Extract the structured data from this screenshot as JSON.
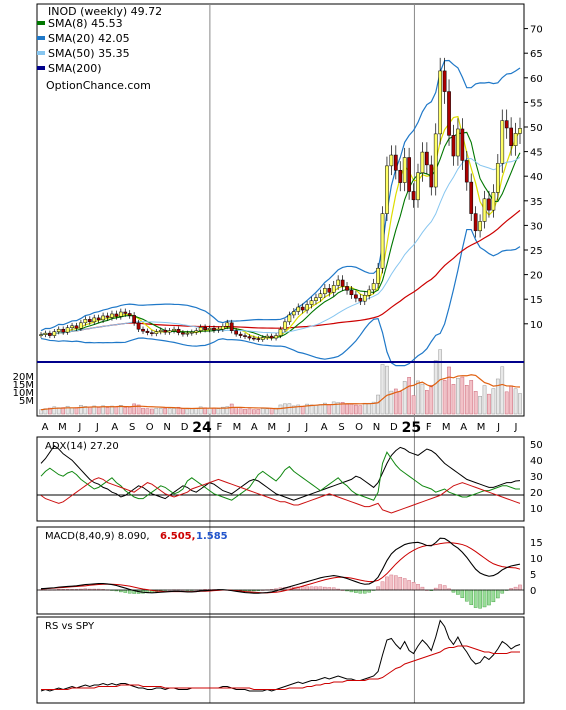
{
  "chart_data": [
    {
      "type": "candlestick",
      "panel": "price",
      "legend_position": "top-left",
      "ylim": [
        0,
        75
      ],
      "yticks": [
        10,
        15,
        20,
        25,
        30,
        35,
        40,
        45,
        50,
        55,
        60,
        65,
        70
      ],
      "legend": {
        "title": "INOD (weekly) 49.72",
        "sma8": "SMA(8) 45.53",
        "sma20": "SMA(20) 42.05",
        "sma50": "SMA(50) 35.35",
        "sma200": "SMA(200)",
        "source": "OptionChance.com"
      },
      "colors": {
        "sma8": "#007700",
        "sma20": "#1f78c8",
        "sma50": "#87c6f0",
        "sma200": "#00008b",
        "up": "#ffff66",
        "down": "#aa0000",
        "trend": "#cc0000"
      },
      "x_labels": [
        "A",
        "M",
        "J",
        "J",
        "A",
        "S",
        "O",
        "N",
        "D",
        "24",
        "F",
        "M",
        "A",
        "M",
        "J",
        "J",
        "A",
        "S",
        "O",
        "N",
        "D",
        "25",
        "F",
        "M",
        "A",
        "M",
        "J",
        "J"
      ],
      "closes": [
        7.8,
        8.1,
        7.6,
        8.4,
        8.9,
        8.3,
        9.2,
        9.6,
        9.1,
        10.2,
        10.9,
        10.4,
        11.2,
        10.8,
        11.6,
        11.3,
        12.0,
        11.5,
        12.4,
        12.1,
        11.7,
        10.2,
        8.9,
        8.5,
        8.2,
        8.0,
        8.4,
        8.7,
        8.3,
        8.6,
        8.9,
        8.2,
        7.9,
        8.1,
        8.3,
        8.6,
        9.3,
        8.8,
        9.1,
        8.7,
        8.9,
        9.5,
        10.2,
        8.6,
        7.9,
        7.6,
        7.4,
        7.1,
        7.0,
        6.8,
        7.2,
        7.5,
        7.1,
        7.6,
        8.9,
        10.4,
        11.8,
        12.5,
        13.4,
        12.8,
        13.9,
        14.7,
        15.3,
        16.1,
        17.2,
        16.4,
        17.8,
        18.9,
        17.6,
        16.8,
        15.9,
        15.2,
        14.6,
        15.8,
        16.9,
        18.2,
        21.3,
        32.4,
        42.1,
        44.3,
        41.2,
        38.7,
        43.8,
        36.9,
        35.2,
        40.7,
        44.9,
        42.3,
        37.8,
        48.6,
        61.4,
        57.2,
        48.3,
        44.1,
        49.6,
        43.2,
        38.8,
        32.4,
        28.9,
        30.8,
        35.4,
        33.1,
        36.7,
        42.6,
        51.3,
        49.8,
        46.2,
        48.7,
        49.72
      ],
      "volume_ticks": [
        "20M",
        "15M",
        "10M",
        "5M"
      ],
      "volume_avg_color": "#e06010"
    },
    {
      "type": "line",
      "panel": "adx",
      "label": "ADX(14) 27.20",
      "yticks": [
        10,
        20,
        30,
        40,
        50
      ],
      "series": [
        {
          "name": "ADX",
          "color": "#000000",
          "values": [
            38,
            41,
            45,
            49,
            47,
            44,
            42,
            40,
            37,
            34,
            31,
            28,
            26,
            25,
            23,
            22,
            20,
            19,
            17,
            18,
            20,
            22,
            24,
            23,
            21,
            19,
            18,
            17,
            16,
            18,
            20,
            22,
            24,
            23,
            21,
            20,
            22,
            24,
            26,
            25,
            23,
            21,
            20,
            19,
            21,
            23,
            25,
            27,
            28,
            27,
            25,
            23,
            21,
            19,
            18,
            17,
            16,
            15,
            16,
            17,
            18,
            19,
            20,
            21,
            22,
            23,
            24,
            25,
            26,
            27,
            28,
            30,
            29,
            27,
            25,
            23,
            26,
            32,
            38,
            43,
            46,
            48,
            47,
            45,
            44,
            43,
            45,
            47,
            46,
            44,
            41,
            38,
            36,
            34,
            32,
            30,
            28,
            27,
            26,
            25,
            24,
            23,
            23,
            24,
            25,
            26,
            26,
            27,
            27.2
          ]
        },
        {
          "name": "+DI",
          "color": "#118811",
          "values": [
            30,
            33,
            35,
            33,
            31,
            30,
            32,
            33,
            31,
            28,
            26,
            24,
            22,
            23,
            25,
            27,
            29,
            26,
            24,
            21,
            19,
            17,
            16,
            16,
            18,
            20,
            22,
            24,
            23,
            21,
            19,
            20,
            22,
            27,
            29,
            27,
            25,
            23,
            21,
            19,
            18,
            17,
            16,
            15,
            17,
            19,
            21,
            23,
            27,
            31,
            33,
            31,
            29,
            27,
            30,
            34,
            36,
            33,
            31,
            29,
            27,
            25,
            23,
            21,
            23,
            25,
            27,
            29,
            26,
            24,
            21,
            19,
            18,
            17,
            16,
            15,
            20,
            38,
            45,
            41,
            37,
            34,
            32,
            30,
            28,
            26,
            24,
            23,
            22,
            20,
            21,
            22,
            20,
            19,
            18,
            17,
            17,
            18,
            19,
            20,
            21,
            21,
            22,
            23,
            24,
            24,
            23,
            22,
            22
          ]
        },
        {
          "name": "-DI",
          "color": "#cc1111",
          "values": [
            18,
            16,
            15,
            14,
            13,
            14,
            16,
            18,
            20,
            22,
            24,
            26,
            28,
            29,
            28,
            26,
            25,
            24,
            23,
            22,
            21,
            20,
            22,
            24,
            26,
            25,
            23,
            21,
            19,
            18,
            17,
            18,
            19,
            20,
            22,
            23,
            24,
            25,
            26,
            27,
            28,
            27,
            26,
            25,
            24,
            23,
            22,
            21,
            20,
            19,
            18,
            17,
            16,
            15,
            14,
            14,
            13,
            12,
            12,
            13,
            14,
            15,
            16,
            17,
            18,
            19,
            18,
            17,
            16,
            15,
            14,
            13,
            12,
            11,
            11,
            12,
            13,
            9,
            8,
            7,
            8,
            9,
            10,
            11,
            12,
            13,
            14,
            15,
            16,
            17,
            18,
            20,
            22,
            24,
            25,
            26,
            25,
            24,
            23,
            22,
            21,
            20,
            19,
            18,
            17,
            16,
            15,
            14,
            13
          ]
        }
      ]
    },
    {
      "type": "line",
      "panel": "macd",
      "label": "MACD(8,40,9) 8.090,",
      "signal_label": "6.505,",
      "hist_label": "1.585",
      "signal_color": "#cc0000",
      "hist_color": "#2255cc",
      "yticks": [
        0,
        5,
        10,
        15
      ],
      "macd": [
        0.4,
        0.5,
        0.6,
        0.7,
        0.9,
        1.0,
        1.1,
        1.2,
        1.3,
        1.5,
        1.7,
        1.8,
        1.9,
        2.0,
        2.0,
        1.9,
        1.7,
        1.4,
        1.0,
        0.6,
        0.2,
        -0.2,
        -0.5,
        -0.7,
        -0.8,
        -0.9,
        -0.8,
        -0.7,
        -0.6,
        -0.5,
        -0.4,
        -0.4,
        -0.5,
        -0.6,
        -0.6,
        -0.5,
        -0.3,
        -0.2,
        -0.1,
        0.0,
        0.1,
        0.1,
        0.0,
        -0.2,
        -0.4,
        -0.6,
        -0.8,
        -0.9,
        -1.0,
        -1.0,
        -0.9,
        -0.8,
        -0.6,
        -0.3,
        0.2,
        0.6,
        1.0,
        1.4,
        1.8,
        2.2,
        2.6,
        3.0,
        3.4,
        3.8,
        4.1,
        4.3,
        4.5,
        4.3,
        4.0,
        3.6,
        3.1,
        2.6,
        2.1,
        1.8,
        1.9,
        2.6,
        4.0,
        6.5,
        9.2,
        11.3,
        12.6,
        13.4,
        14.2,
        14.6,
        14.8,
        14.9,
        14.5,
        13.9,
        13.8,
        14.8,
        16.2,
        16.1,
        15.2,
        14.0,
        13.1,
        11.8,
        10.2,
        8.3,
        6.5,
        5.3,
        4.7,
        4.3,
        4.5,
        5.2,
        6.3,
        7.0,
        7.5,
        7.8,
        8.09
      ],
      "signal": [
        0.3,
        0.4,
        0.5,
        0.6,
        0.7,
        0.8,
        0.9,
        1.0,
        1.1,
        1.2,
        1.3,
        1.5,
        1.6,
        1.7,
        1.8,
        1.8,
        1.8,
        1.7,
        1.6,
        1.4,
        1.2,
        0.9,
        0.6,
        0.3,
        0.1,
        -0.1,
        -0.3,
        -0.4,
        -0.5,
        -0.5,
        -0.5,
        -0.5,
        -0.5,
        -0.5,
        -0.5,
        -0.5,
        -0.4,
        -0.4,
        -0.3,
        -0.2,
        -0.1,
        0.0,
        0.0,
        -0.1,
        -0.2,
        -0.3,
        -0.5,
        -0.6,
        -0.7,
        -0.8,
        -0.9,
        -0.9,
        -0.8,
        -0.7,
        -0.5,
        -0.2,
        0.1,
        0.5,
        0.8,
        1.2,
        1.6,
        2.0,
        2.4,
        2.8,
        3.2,
        3.5,
        3.8,
        4.0,
        4.0,
        3.9,
        3.7,
        3.4,
        3.1,
        2.8,
        2.6,
        2.7,
        3.0,
        3.9,
        5.1,
        6.6,
        8.1,
        9.4,
        10.6,
        11.6,
        12.4,
        13.1,
        13.6,
        13.9,
        14.0,
        14.2,
        14.5,
        14.7,
        14.8,
        14.7,
        14.5,
        14.2,
        13.7,
        12.9,
        12.0,
        11.0,
        10.0,
        9.0,
        8.2,
        7.7,
        7.3,
        7.1,
        7.0,
        6.9,
        6.505
      ]
    },
    {
      "type": "line",
      "panel": "rs",
      "label": "RS vs SPY",
      "series": [
        {
          "name": "RS",
          "color": "#000000",
          "values": [
            6,
            7,
            6,
            7,
            8,
            7,
            8,
            9,
            8,
            9,
            10,
            9,
            10,
            10,
            11,
            10,
            11,
            10,
            11,
            11,
            10,
            9,
            8,
            8,
            7,
            7,
            8,
            8,
            7,
            8,
            8,
            7,
            7,
            7,
            8,
            8,
            8,
            8,
            8,
            8,
            8,
            9,
            9,
            8,
            7,
            7,
            7,
            6,
            6,
            6,
            6,
            7,
            6,
            7,
            8,
            9,
            10,
            11,
            12,
            11,
            12,
            13,
            13,
            14,
            15,
            14,
            15,
            16,
            15,
            14,
            14,
            13,
            13,
            14,
            15,
            16,
            19,
            30,
            40,
            41,
            37,
            34,
            39,
            33,
            31,
            36,
            40,
            37,
            33,
            42,
            53,
            49,
            41,
            37,
            42,
            36,
            32,
            27,
            24,
            25,
            29,
            27,
            30,
            34,
            39,
            37,
            34,
            36,
            37
          ]
        },
        {
          "name": "RS avg",
          "color": "#cc0000",
          "values": [
            7,
            7,
            7,
            7,
            7,
            7,
            7,
            8,
            8,
            8,
            8,
            8,
            8,
            9,
            9,
            9,
            9,
            9,
            10,
            10,
            10,
            10,
            10,
            9,
            9,
            9,
            9,
            9,
            8,
            8,
            8,
            8,
            8,
            8,
            8,
            8,
            8,
            8,
            8,
            8,
            8,
            8,
            8,
            8,
            8,
            8,
            8,
            8,
            7,
            7,
            7,
            7,
            7,
            7,
            7,
            7,
            8,
            8,
            8,
            8,
            9,
            9,
            10,
            10,
            11,
            11,
            12,
            12,
            12,
            13,
            13,
            13,
            13,
            13,
            14,
            14,
            14,
            15,
            17,
            19,
            21,
            22,
            24,
            25,
            26,
            27,
            28,
            29,
            30,
            31,
            32,
            34,
            35,
            35,
            36,
            36,
            36,
            35,
            34,
            33,
            32,
            32,
            31,
            31,
            31,
            31,
            32,
            32,
            32
          ]
        }
      ]
    }
  ]
}
